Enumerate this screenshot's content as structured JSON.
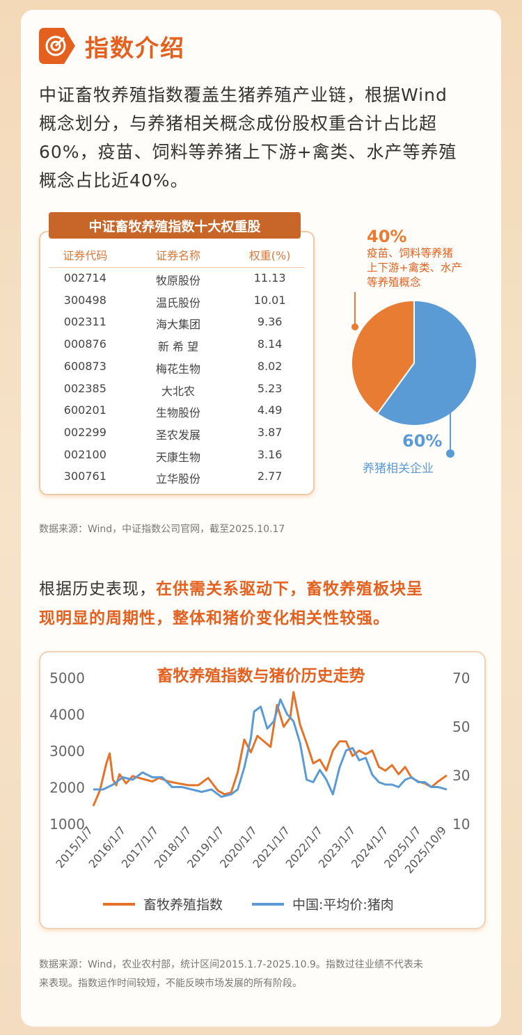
{
  "header": {
    "title": "指数介绍",
    "icon": "target-icon",
    "accent": "#e4601e"
  },
  "intro": {
    "lines": [
      "中证畜牧养殖指数覆盖生猪养殖产业链，根据Wind",
      "概念划分，与养猪相关概念成份股权重合计占比超",
      "60%，疫苗、饲料等养猪上下游+禽类、水产等养殖",
      "概念占比近40%。"
    ]
  },
  "table": {
    "title": "中证畜牧养殖指数十大权重股",
    "headers": [
      "证券代码",
      "证券名称",
      "权重(%)"
    ],
    "rows": [
      [
        "002714",
        "牧原股份",
        "11.13"
      ],
      [
        "300498",
        "温氏股份",
        "10.01"
      ],
      [
        "002311",
        "海大集团",
        "9.36"
      ],
      [
        "000876",
        "新 希 望",
        "8.14"
      ],
      [
        "600873",
        "梅花生物",
        "8.02"
      ],
      [
        "002385",
        "大北农",
        "5.23"
      ],
      [
        "600201",
        "生物股份",
        "4.49"
      ],
      [
        "002299",
        "圣农发展",
        "3.87"
      ],
      [
        "002100",
        "天康生物",
        "3.16"
      ],
      [
        "300761",
        "立华股份",
        "2.77"
      ]
    ]
  },
  "pie": {
    "slice_orange": {
      "pct": "40%",
      "desc_lines": [
        "疫苗、饲料等养猪",
        "上下游+禽类、水产",
        "等养殖概念"
      ],
      "value": 40,
      "color": "#e97c33"
    },
    "slice_blue": {
      "pct": "60%",
      "desc": "养猪相关企业",
      "value": 60,
      "color": "#5b9bd5"
    }
  },
  "source1": "数据来源：Wind，中证指数公司官网，截至2025.10.17",
  "history": {
    "line1_plain": "根据历史表现，",
    "line1_highlight": "在供需关系驱动下，畜牧养殖板块呈",
    "line2_highlight": "现明显的周期性，整体和猪价变化相关性较强。"
  },
  "chart_data": {
    "type": "line",
    "title": "畜牧养殖指数与猪价历史走势",
    "x_ticks": [
      "2015/1/7",
      "2016/1/7",
      "2017/1/7",
      "2018/1/7",
      "2019/1/7",
      "2020/1/7",
      "2021/1/7",
      "2022/1/7",
      "2023/1/7",
      "2024/1/7",
      "2025/1/7",
      "2025/10/9"
    ],
    "y_left_ticks": [
      "5000",
      "4000",
      "3000",
      "2000",
      "1000"
    ],
    "y_left_range": [
      1000,
      5000
    ],
    "y_right_ticks": [
      "70",
      "50",
      "30",
      "10"
    ],
    "y_right_range": [
      10,
      70
    ],
    "series": [
      {
        "name": "畜牧养殖指数",
        "axis": "left",
        "color": "#e4732a",
        "x": [
          2015.0,
          2015.2,
          2015.4,
          2015.5,
          2015.6,
          2015.7,
          2015.8,
          2016.0,
          2016.2,
          2016.4,
          2016.6,
          2016.8,
          2017.0,
          2017.3,
          2017.6,
          2017.9,
          2018.2,
          2018.5,
          2018.8,
          2019.0,
          2019.2,
          2019.4,
          2019.6,
          2019.8,
          2020.0,
          2020.2,
          2020.4,
          2020.6,
          2020.8,
          2021.0,
          2021.1,
          2021.3,
          2021.5,
          2021.7,
          2021.9,
          2022.1,
          2022.3,
          2022.5,
          2022.7,
          2022.9,
          2023.1,
          2023.3,
          2023.5,
          2023.7,
          2023.9,
          2024.1,
          2024.3,
          2024.5,
          2024.7,
          2024.9,
          2025.1,
          2025.3,
          2025.5,
          2025.77
        ],
        "values": [
          1480,
          1900,
          2650,
          2920,
          2200,
          2050,
          2350,
          2100,
          2300,
          2250,
          2200,
          2150,
          2250,
          2150,
          2100,
          2050,
          2050,
          2250,
          1900,
          1800,
          1850,
          2400,
          3300,
          2950,
          3400,
          3250,
          3100,
          4250,
          3650,
          3900,
          4600,
          3700,
          3200,
          2650,
          2750,
          2450,
          3000,
          3250,
          3250,
          2850,
          3000,
          2900,
          3000,
          2550,
          2450,
          2600,
          2350,
          2550,
          2250,
          2150,
          2100,
          2000,
          2150,
          2320
        ]
      },
      {
        "name": "中国:平均价:猪肉",
        "axis": "right",
        "color": "#5b9bd5",
        "x": [
          2015.0,
          2015.3,
          2015.6,
          2015.9,
          2016.2,
          2016.5,
          2016.8,
          2017.1,
          2017.4,
          2017.7,
          2018.0,
          2018.3,
          2018.6,
          2018.9,
          2019.2,
          2019.4,
          2019.6,
          2019.8,
          2019.9,
          2020.1,
          2020.3,
          2020.5,
          2020.7,
          2020.9,
          2021.1,
          2021.3,
          2021.5,
          2021.7,
          2021.9,
          2022.1,
          2022.3,
          2022.5,
          2022.7,
          2022.9,
          2023.1,
          2023.3,
          2023.5,
          2023.7,
          2023.9,
          2024.1,
          2024.3,
          2024.5,
          2024.7,
          2024.9,
          2025.1,
          2025.3,
          2025.5,
          2025.77
        ],
        "values": [
          24,
          24,
          26,
          29,
          28,
          31,
          29,
          29,
          25,
          25,
          24,
          23,
          24,
          21,
          22,
          24,
          33,
          45,
          56,
          58,
          49,
          52,
          61,
          55,
          52,
          43,
          28,
          27,
          32,
          28,
          22,
          33,
          40,
          41,
          36,
          37,
          30,
          27,
          26,
          26,
          25,
          28,
          29,
          27,
          27,
          25,
          25,
          24
        ]
      }
    ],
    "legend_position": "bottom",
    "grid": false
  },
  "source2_lines": [
    "数据来源：Wind，农业农村部，统计区间2015.1.7-2025.10.9。指数过往业绩不代表未",
    "来表现。指数运作时间较短，不能反映市场发展的所有阶段。"
  ]
}
